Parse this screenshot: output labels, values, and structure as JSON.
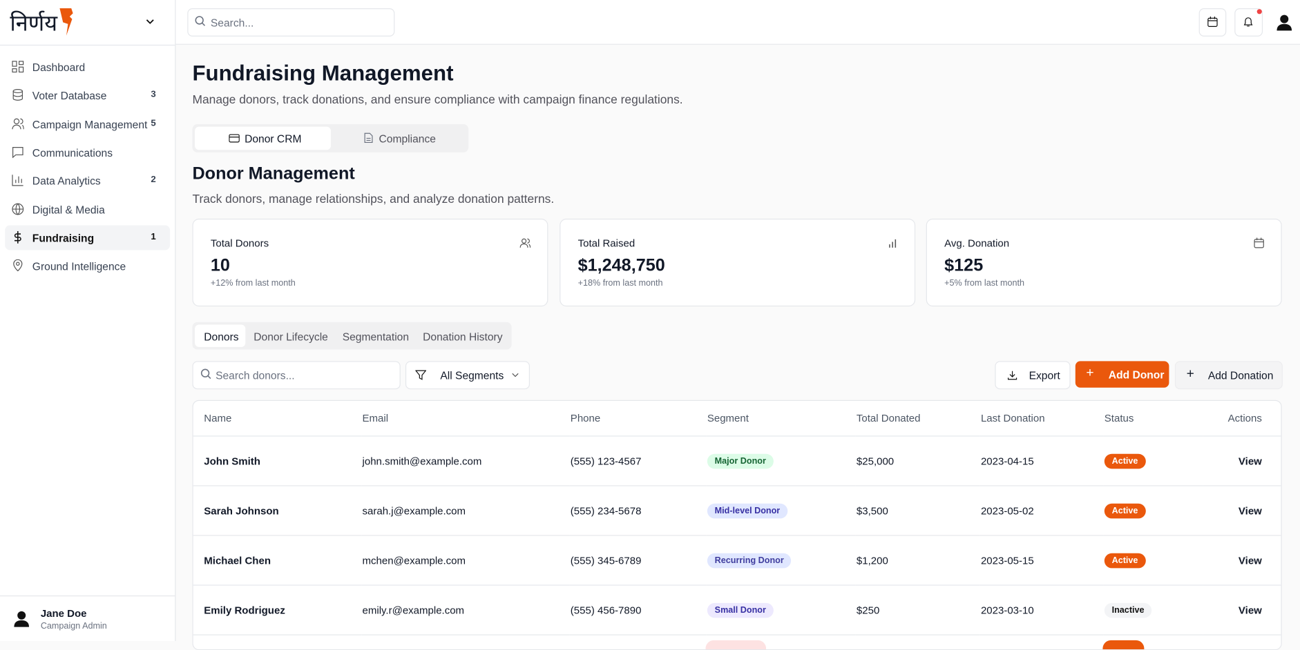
{
  "sidebar": {
    "logo": "निर्णय",
    "nav": [
      {
        "label": "Dashboard"
      },
      {
        "label": "Voter Database",
        "badge": "3"
      },
      {
        "label": "Campaign Management",
        "badge": "5"
      },
      {
        "label": "Communications"
      },
      {
        "label": "Data Analytics",
        "badge": "2"
      },
      {
        "label": "Digital & Media"
      },
      {
        "label": "Fundraising",
        "badge": "1"
      },
      {
        "label": "Ground Intelligence"
      }
    ],
    "user": {
      "name": "Jane Doe",
      "role": "Campaign Admin"
    }
  },
  "topbar": {
    "search_placeholder": "Search..."
  },
  "header": {
    "title": "Fundraising Management",
    "subtitle": "Manage donors, track donations, and ensure compliance with campaign finance regulations.",
    "tabs": [
      "Donor CRM",
      "Compliance"
    ]
  },
  "section": {
    "title": "Donor Management",
    "subtitle": "Track donors, manage relationships, and analyze donation patterns."
  },
  "stats": [
    {
      "label": "Total Donors",
      "value": "10",
      "change": "+12% from last month"
    },
    {
      "label": "Total Raised",
      "value": "$1,248,750",
      "change": "+18% from last month"
    },
    {
      "label": "Avg. Donation",
      "value": "$125",
      "change": "+5% from last month"
    }
  ],
  "subtabs": [
    "Donors",
    "Donor Lifecycle",
    "Segmentation",
    "Donation History"
  ],
  "toolbar": {
    "search_placeholder": "Search donors...",
    "filter": "All Segments",
    "buttons": [
      "Export",
      "Add Donor",
      "Add Donation"
    ]
  },
  "table": {
    "columns": [
      "Name",
      "Email",
      "Phone",
      "Segment",
      "Total Donated",
      "Last Donation",
      "Status",
      "Actions"
    ],
    "rows": [
      [
        "John Smith",
        "john.smith@example.com",
        "(555) 123-4567",
        "Major Donor",
        "$25,000",
        "2023-04-15",
        "Active",
        "View"
      ],
      [
        "Sarah Johnson",
        "sarah.j@example.com",
        "(555) 234-5678",
        "Mid-level Donor",
        "$3,500",
        "2023-05-02",
        "Active",
        "View"
      ],
      [
        "Michael Chen",
        "mchen@example.com",
        "(555) 345-6789",
        "Recurring Donor",
        "$1,200",
        "2023-05-15",
        "Active",
        "View"
      ],
      [
        "Emily Rodriguez",
        "emily.r@example.com",
        "(555) 456-7890",
        "Small Donor",
        "$250",
        "2023-03-10",
        "Inactive",
        "View"
      ]
    ]
  }
}
